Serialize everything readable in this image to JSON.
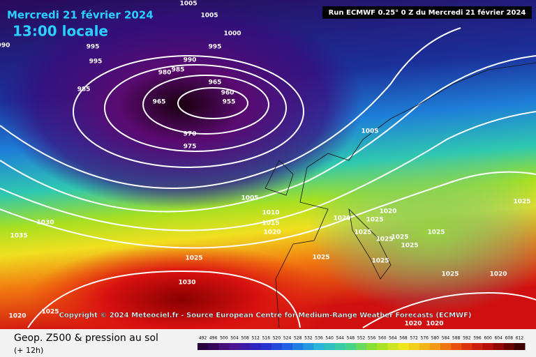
{
  "header": {
    "date": "Mercredi 21 février 2024",
    "time": "13:00 locale",
    "run": "Run ECMWF 0.25° 0 Z du Mercredi 21 février 2024"
  },
  "copyright": "Copyright © 2024 Meteociel.fr - Source European Centre for Medium-Range Weather Forecasts (ECMWF)",
  "footer": {
    "title": "Geop. Z500 & pression au sol",
    "lead": "(+ 12h)"
  },
  "colorbar": {
    "labels": [
      492,
      496,
      500,
      504,
      508,
      512,
      516,
      520,
      524,
      528,
      532,
      536,
      540,
      544,
      548,
      552,
      556,
      560,
      564,
      568,
      572,
      576,
      580,
      584,
      588,
      592,
      596,
      600,
      604,
      608,
      612
    ]
  },
  "isobar_labels": [
    "1005",
    "1005",
    "1000",
    "995",
    "995",
    "995",
    "990",
    "990",
    "985",
    "980",
    "985",
    "965",
    "965",
    "960",
    "955",
    "970",
    "975",
    "1005",
    "1005",
    "1010",
    "1015",
    "1020",
    "1030",
    "1035",
    "1025",
    "1030",
    "1020",
    "1025",
    "1020",
    "1020",
    "1025",
    "1025",
    "1025",
    "1025",
    "1025",
    "1025",
    "1025",
    "1025",
    "1025",
    "1025",
    "1020",
    "1020",
    "1020"
  ]
}
